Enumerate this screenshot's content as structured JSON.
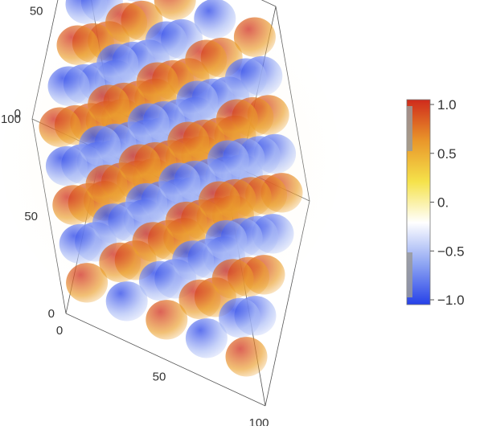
{
  "chart_data": {
    "type": "heatmap",
    "subtype": "3d-density-volume",
    "title": "",
    "axes": {
      "x": {
        "range": [
          0,
          100
        ],
        "ticks": [
          "0",
          "50",
          "100"
        ]
      },
      "y": {
        "range": [
          0,
          100
        ],
        "ticks": [
          "0",
          "50",
          "100"
        ]
      },
      "z": {
        "range": [
          0,
          100
        ],
        "ticks": [
          "0",
          "50",
          "100"
        ]
      }
    },
    "grid": false,
    "box": true,
    "colorbar": {
      "placement": "right",
      "range": [
        -1.0,
        1.0
      ],
      "ticks": [
        "1.0",
        "0.5",
        "0.",
        "−0.5",
        "−1.0"
      ],
      "colors": [
        "#2540e8",
        "#8fa6f3",
        "#ffffff",
        "#f5e24a",
        "#e9962a",
        "#cf2a1c"
      ]
    },
    "function": "sign-alternating lattice of blobs, value = (-1)^(i+j+k)",
    "lattice_centers": [
      10,
      30,
      50,
      70,
      90
    ],
    "blob_value_range": [
      -1.0,
      1.0
    ]
  }
}
